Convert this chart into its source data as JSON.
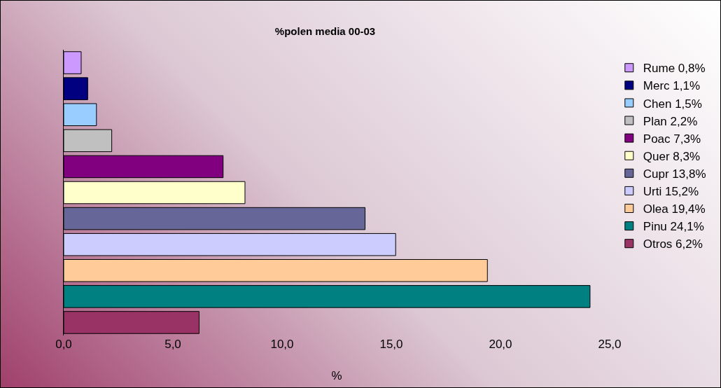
{
  "chart_data": {
    "type": "bar",
    "orientation": "horizontal",
    "title": "%polen media 00-03",
    "xlabel": "%",
    "categories": [
      null,
      null,
      null,
      null,
      null,
      null,
      null,
      null,
      null,
      null,
      null
    ],
    "series": [
      {
        "name": "Rume 0,8%",
        "color": "#cc99ff",
        "values": [
          0.8,
          null,
          null,
          null,
          null,
          null,
          null,
          null,
          null,
          null,
          null
        ]
      },
      {
        "name": "Merc 1,1%",
        "color": "#000080",
        "values": [
          null,
          1.1,
          null,
          null,
          null,
          null,
          null,
          null,
          null,
          null,
          null
        ]
      },
      {
        "name": "Chen 1,5%",
        "color": "#99ccff",
        "values": [
          null,
          null,
          1.5,
          null,
          null,
          null,
          null,
          null,
          null,
          null,
          null
        ]
      },
      {
        "name": "Plan 2,2%",
        "color": "#c0c0c0",
        "values": [
          null,
          null,
          null,
          2.2,
          null,
          null,
          null,
          null,
          null,
          null,
          null
        ]
      },
      {
        "name": "Poac 7,3%",
        "color": "#800080",
        "values": [
          null,
          null,
          null,
          null,
          7.3,
          null,
          null,
          null,
          null,
          null,
          null
        ]
      },
      {
        "name": "Quer 8,3%",
        "color": "#ffffcc",
        "values": [
          null,
          null,
          null,
          null,
          null,
          8.3,
          null,
          null,
          null,
          null,
          null
        ]
      },
      {
        "name": "Cupr 13,8%",
        "color": "#666699",
        "values": [
          null,
          null,
          null,
          null,
          null,
          null,
          13.8,
          null,
          null,
          null,
          null
        ]
      },
      {
        "name": "Urti 15,2%",
        "color": "#ccccff",
        "values": [
          null,
          null,
          null,
          null,
          null,
          null,
          null,
          15.2,
          null,
          null,
          null
        ]
      },
      {
        "name": "Olea 19,4%",
        "color": "#ffcc99",
        "values": [
          null,
          null,
          null,
          null,
          null,
          null,
          null,
          null,
          19.4,
          null,
          null
        ]
      },
      {
        "name": "Pinu 24,1%",
        "color": "#008080",
        "values": [
          null,
          null,
          null,
          null,
          null,
          null,
          null,
          null,
          null,
          24.1,
          null
        ]
      },
      {
        "name": "Otros 6,2%",
        "color": "#993366",
        "values": [
          null,
          null,
          null,
          null,
          null,
          null,
          null,
          null,
          null,
          null,
          6.2
        ]
      }
    ],
    "xlim": [
      0,
      25
    ],
    "xticks": [
      {
        "value": 0,
        "label": "0,0"
      },
      {
        "value": 5,
        "label": "5,0"
      },
      {
        "value": 10,
        "label": "10,0"
      },
      {
        "value": 15,
        "label": "15,0"
      },
      {
        "value": 20,
        "label": "20,0"
      },
      {
        "value": 25,
        "label": "25,0"
      }
    ],
    "grid": false,
    "legend": "right",
    "tick_labels": "x"
  }
}
